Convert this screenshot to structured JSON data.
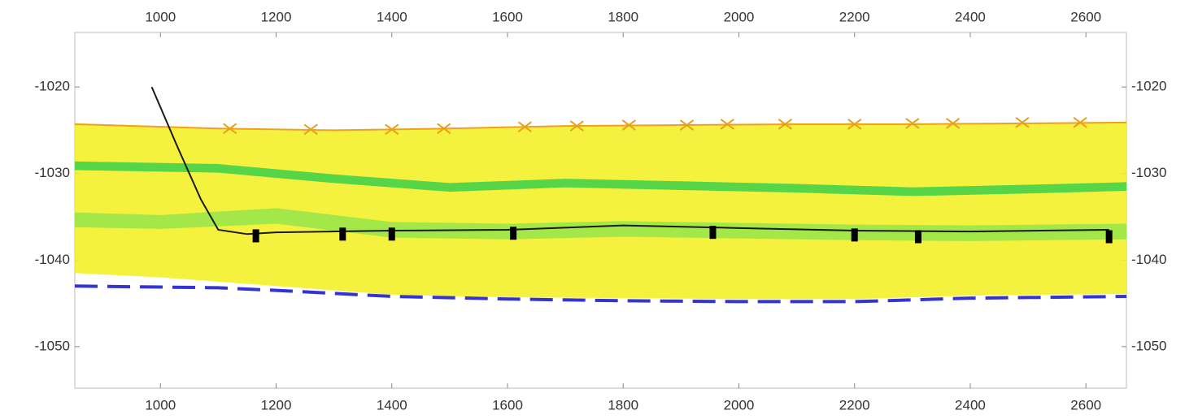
{
  "chart_data": {
    "type": "line",
    "xlim": [
      852,
      2670
    ],
    "ylim": [
      -1054.8,
      -1013.7
    ],
    "xticks": [
      1000,
      1200,
      1400,
      1600,
      1800,
      2000,
      2200,
      2400,
      2600
    ],
    "yticks": [
      -1020,
      -1030,
      -1040,
      -1050
    ],
    "series": [
      {
        "type": "area",
        "color": "#f3f02a",
        "x": [
          852,
          1000,
          1100,
          1200,
          1400,
          1600,
          1800,
          2000,
          2200,
          2400,
          2670
        ],
        "upper": [
          -1024.2,
          -1024.5,
          -1024.8,
          -1025,
          -1025,
          -1024.6,
          -1024.4,
          -1024.3,
          -1024.3,
          -1024.2,
          -1024.1
        ],
        "lower": [
          -1041.5,
          -1042,
          -1042.5,
          -1043,
          -1044,
          -1044.3,
          -1044.4,
          -1044.5,
          -1044.5,
          -1044.1,
          -1043.9
        ]
      },
      {
        "type": "area",
        "color": "#9ae64a",
        "x": [
          852,
          1000,
          1200,
          1400,
          1600,
          1800,
          2000,
          2200,
          2400,
          2670
        ],
        "upper": [
          -1034.5,
          -1034.8,
          -1034,
          -1035.6,
          -1035.8,
          -1035.5,
          -1035.7,
          -1035.9,
          -1036,
          -1035.8
        ],
        "lower": [
          -1036.2,
          -1036.4,
          -1035.8,
          -1037.4,
          -1037.6,
          -1037.3,
          -1037.5,
          -1037.7,
          -1037.8,
          -1037.6
        ]
      },
      {
        "type": "area",
        "color": "#46d24a",
        "x": [
          852,
          1100,
          1300,
          1500,
          1700,
          1900,
          2100,
          2300,
          2500,
          2670
        ],
        "upper": [
          -1028.6,
          -1028.9,
          -1030.1,
          -1031.1,
          -1030.6,
          -1030.9,
          -1031.2,
          -1031.6,
          -1031.3,
          -1031
        ],
        "lower": [
          -1029.6,
          -1029.9,
          -1031.1,
          -1032.1,
          -1031.6,
          -1031.9,
          -1032.2,
          -1032.6,
          -1032.3,
          -1032
        ]
      },
      {
        "type": "line",
        "color": "#f0a020",
        "x": [
          852,
          1100,
          1300,
          1500,
          1700,
          1900,
          2100,
          2300,
          2500,
          2670
        ],
        "values": [
          -1024.3,
          -1024.8,
          -1025,
          -1024.8,
          -1024.5,
          -1024.4,
          -1024.3,
          -1024.3,
          -1024.2,
          -1024.1
        ]
      },
      {
        "type": "line",
        "color": "#1a1a1a",
        "x": [
          985,
          1030,
          1070,
          1100,
          1150,
          1200,
          1400,
          1600,
          1800,
          2000,
          2200,
          2400,
          2640
        ],
        "values": [
          -1020,
          -1027,
          -1033,
          -1036.5,
          -1037,
          -1036.8,
          -1036.6,
          -1036.5,
          -1036,
          -1036.3,
          -1036.6,
          -1036.7,
          -1036.5
        ]
      },
      {
        "type": "line",
        "color": "#3434d0",
        "dash": true,
        "x": [
          852,
          1100,
          1200,
          1400,
          1600,
          1800,
          2000,
          2200,
          2400,
          2670
        ],
        "values": [
          -1043,
          -1043.2,
          -1043.5,
          -1044.2,
          -1044.5,
          -1044.7,
          -1044.8,
          -1044.8,
          -1044.4,
          -1044.2
        ]
      },
      {
        "type": "scatter",
        "marker": "x",
        "color": "#e8a018",
        "x": [
          1120,
          1260,
          1400,
          1490,
          1630,
          1720,
          1810,
          1910,
          1980,
          2080,
          2200,
          2300,
          2370,
          2490,
          2590
        ],
        "values": [
          -1024.8,
          -1024.9,
          -1024.9,
          -1024.8,
          -1024.6,
          -1024.5,
          -1024.4,
          -1024.4,
          -1024.3,
          -1024.3,
          -1024.3,
          -1024.2,
          -1024.2,
          -1024.1,
          -1024.1
        ]
      },
      {
        "type": "scatter",
        "marker": "rect",
        "color": "#000000",
        "x": [
          1165,
          1315,
          1400,
          1610,
          1955,
          2200,
          2310,
          2640
        ],
        "values": [
          -1037.2,
          -1037,
          -1037,
          -1036.9,
          -1036.8,
          -1037.1,
          -1037.3,
          -1037.3
        ]
      }
    ]
  }
}
